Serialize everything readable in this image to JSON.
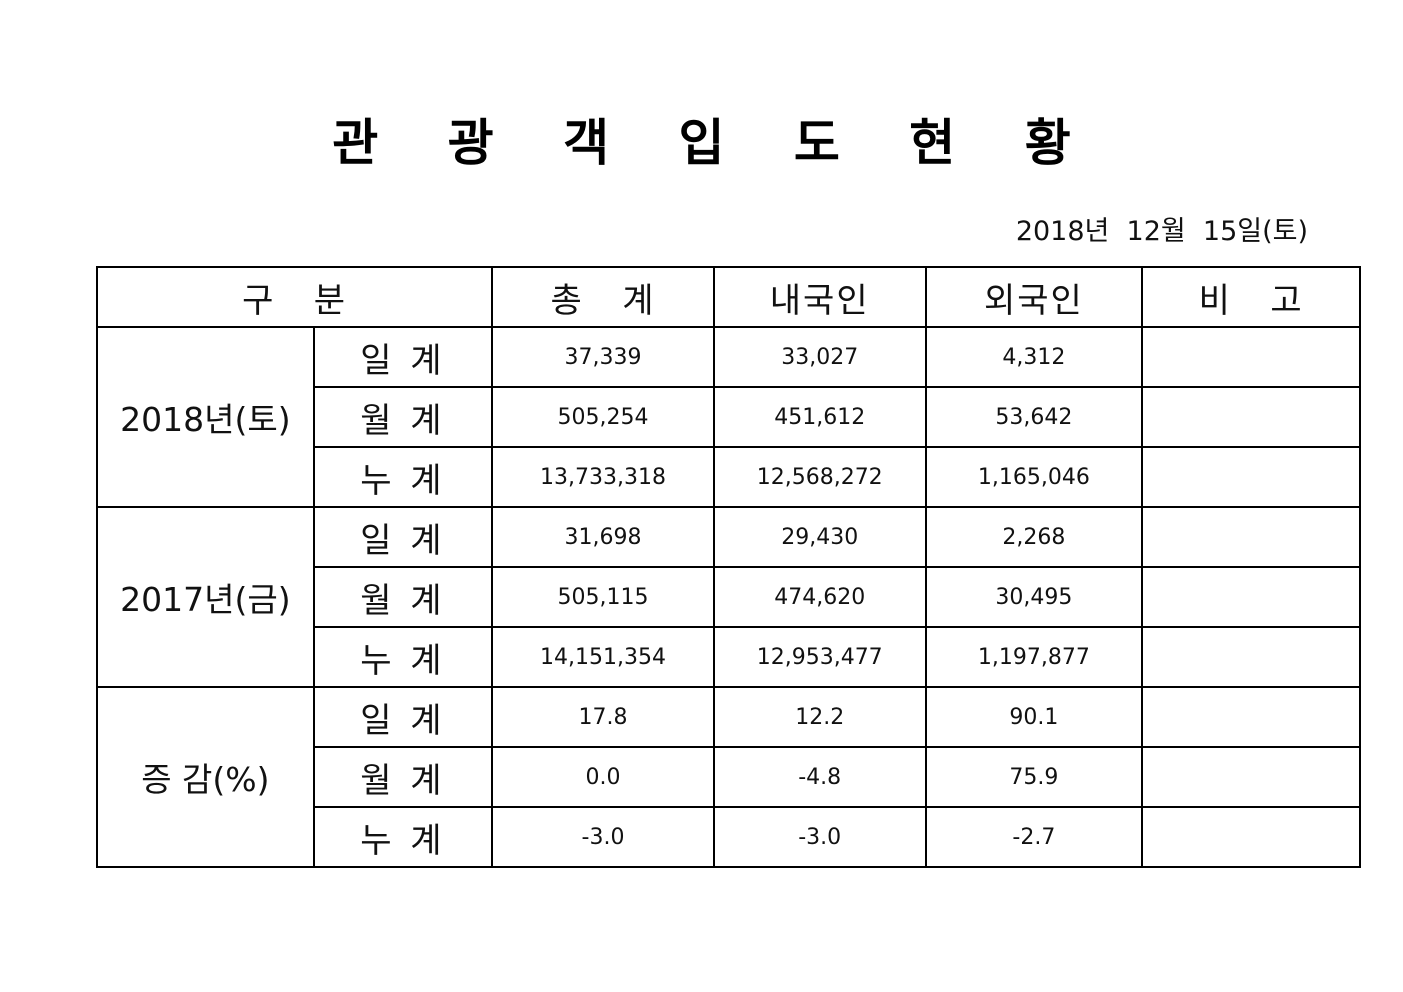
{
  "document": {
    "title": "관 광 객 입 도 현 황",
    "date": "2018년  12월  15일(토)"
  },
  "table": {
    "headers": {
      "category": "구   분",
      "total": "총   계",
      "domestic": "내국인",
      "foreign": "외국인",
      "remarks": "비   고"
    },
    "groups": [
      {
        "label": "2018년(토)",
        "rows": [
          {
            "sub": "일 계",
            "total": "37,339",
            "domestic": "33,027",
            "foreign": "4,312",
            "remarks": ""
          },
          {
            "sub": "월 계",
            "total": "505,254",
            "domestic": "451,612",
            "foreign": "53,642",
            "remarks": ""
          },
          {
            "sub": "누 계",
            "total": "13,733,318",
            "domestic": "12,568,272",
            "foreign": "1,165,046",
            "remarks": ""
          }
        ]
      },
      {
        "label": "2017년(금)",
        "rows": [
          {
            "sub": "일 계",
            "total": "31,698",
            "domestic": "29,430",
            "foreign": "2,268",
            "remarks": ""
          },
          {
            "sub": "월 계",
            "total": "505,115",
            "domestic": "474,620",
            "foreign": "30,495",
            "remarks": ""
          },
          {
            "sub": "누 계",
            "total": "14,151,354",
            "domestic": "12,953,477",
            "foreign": "1,197,877",
            "remarks": ""
          }
        ]
      },
      {
        "label": "증 감(%)",
        "rows": [
          {
            "sub": "일 계",
            "total": "17.8",
            "domestic": "12.2",
            "foreign": "90.1",
            "remarks": ""
          },
          {
            "sub": "월 계",
            "total": "0.0",
            "domestic": "-4.8",
            "foreign": "75.9",
            "remarks": ""
          },
          {
            "sub": "누 계",
            "total": "-3.0",
            "domestic": "-3.0",
            "foreign": "-2.7",
            "remarks": ""
          }
        ]
      }
    ]
  }
}
